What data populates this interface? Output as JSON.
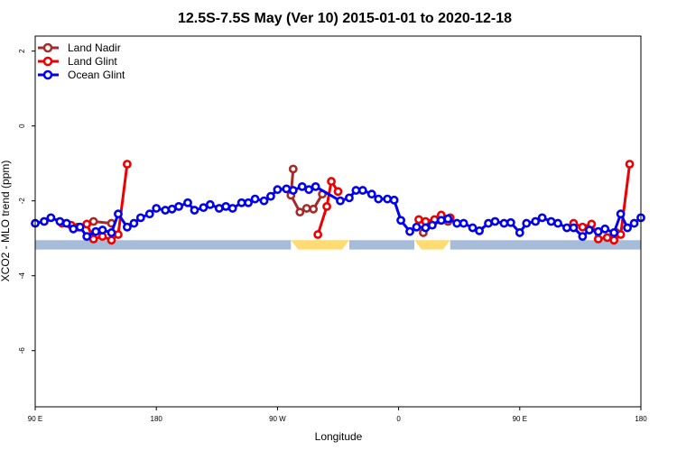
{
  "chart_data": {
    "type": "line",
    "title": "12.5S-7.5S May (Ver 10)   2015-01-01 to 2020-12-18",
    "xlabel": "Longitude",
    "ylabel": "XCO2 - MLO trend (ppm)",
    "xlim": [
      -90,
      180
    ],
    "ylim": [
      -7.5,
      2.4
    ],
    "x_ticks": [
      {
        "value": -90,
        "label": "90 E"
      },
      {
        "value": -36,
        "label": "180"
      },
      {
        "value": 18,
        "label": "90 W"
      },
      {
        "value": 72,
        "label": "0"
      },
      {
        "value": 126,
        "label": "90 E"
      },
      {
        "value": 180,
        "label": "180"
      }
    ],
    "y_ticks": [
      {
        "value": 2,
        "label": "2"
      },
      {
        "value": 0,
        "label": "0"
      },
      {
        "value": -2,
        "label": "-2"
      },
      {
        "value": -4,
        "label": "-4"
      },
      {
        "value": -6,
        "label": "-6"
      }
    ],
    "legend_position": "top-left",
    "surface_band": {
      "y_range": [
        -3.3,
        -3.05
      ],
      "segments": [
        {
          "x_range": [
            -90,
            24
          ],
          "surface": "ocean",
          "color": "#a7bcd8"
        },
        {
          "x_range": [
            24,
            50
          ],
          "surface": "land",
          "color": "#ffdb73"
        },
        {
          "x_range": [
            50,
            79
          ],
          "surface": "ocean",
          "color": "#a7bcd8"
        },
        {
          "x_range": [
            79,
            95
          ],
          "surface": "land",
          "color": "#ffdb73"
        },
        {
          "x_range": [
            95,
            180
          ],
          "surface": "ocean",
          "color": "#a7bcd8"
        }
      ]
    },
    "series": [
      {
        "name": "Land Nadir",
        "color": "#a52a2a",
        "points": [
          {
            "x": -64,
            "y": -2.55
          },
          {
            "x": -56,
            "y": -2.6
          },
          {
            "x": 25,
            "y": -1.15
          },
          {
            "x": 24,
            "y": -1.85
          },
          {
            "x": 28,
            "y": -2.3
          },
          {
            "x": 31,
            "y": -2.2
          },
          {
            "x": 34,
            "y": -2.22
          },
          {
            "x": 38,
            "y": -1.82
          },
          {
            "x": 83,
            "y": -2.85
          },
          {
            "x": 87,
            "y": -2.6
          },
          {
            "x": 94,
            "y": -2.55
          },
          {
            "x": 169,
            "y": -2.85
          }
        ]
      },
      {
        "name": "Land Glint",
        "color": "#ee0000",
        "points": [
          {
            "x": -78,
            "y": -2.6
          },
          {
            "x": -74,
            "y": -2.65
          },
          {
            "x": -71,
            "y": -2.7
          },
          {
            "x": -67,
            "y": -2.62
          },
          {
            "x": -64,
            "y": -3.02
          },
          {
            "x": -60,
            "y": -2.95
          },
          {
            "x": -56,
            "y": -3.05
          },
          {
            "x": -53,
            "y": -2.9
          },
          {
            "x": -49,
            "y": -1.02
          },
          {
            "x": 36,
            "y": -2.9
          },
          {
            "x": 40,
            "y": -2.15
          },
          {
            "x": 42,
            "y": -1.48
          },
          {
            "x": 45,
            "y": -1.75
          },
          {
            "x": 81,
            "y": -2.5
          },
          {
            "x": 84,
            "y": -2.55
          },
          {
            "x": 88,
            "y": -2.5
          },
          {
            "x": 91,
            "y": -2.38
          },
          {
            "x": 95,
            "y": -2.45
          },
          {
            "x": 150,
            "y": -2.6
          },
          {
            "x": 154,
            "y": -2.7
          },
          {
            "x": 158,
            "y": -2.62
          },
          {
            "x": 161,
            "y": -3.02
          },
          {
            "x": 165,
            "y": -2.98
          },
          {
            "x": 168,
            "y": -3.05
          },
          {
            "x": 171,
            "y": -2.9
          },
          {
            "x": 175,
            "y": -1.02
          }
        ]
      },
      {
        "name": "Ocean Glint",
        "color": "#0000ee",
        "points": [
          {
            "x": -90,
            "y": -2.6
          },
          {
            "x": -86,
            "y": -2.55
          },
          {
            "x": -83,
            "y": -2.45
          },
          {
            "x": -79,
            "y": -2.55
          },
          {
            "x": -76,
            "y": -2.6
          },
          {
            "x": -73,
            "y": -2.75
          },
          {
            "x": -70,
            "y": -2.7
          },
          {
            "x": -67,
            "y": -2.95
          },
          {
            "x": -63,
            "y": -2.82
          },
          {
            "x": -60,
            "y": -2.78
          },
          {
            "x": -56,
            "y": -2.85
          },
          {
            "x": -53,
            "y": -2.35
          },
          {
            "x": -49,
            "y": -2.7
          },
          {
            "x": -46,
            "y": -2.6
          },
          {
            "x": -43,
            "y": -2.45
          },
          {
            "x": -39,
            "y": -2.35
          },
          {
            "x": -36,
            "y": -2.2
          },
          {
            "x": -32,
            "y": -2.25
          },
          {
            "x": -29,
            "y": -2.22
          },
          {
            "x": -26,
            "y": -2.15
          },
          {
            "x": -22,
            "y": -2.05
          },
          {
            "x": -19,
            "y": -2.25
          },
          {
            "x": -15,
            "y": -2.18
          },
          {
            "x": -12,
            "y": -2.1
          },
          {
            "x": -8,
            "y": -2.2
          },
          {
            "x": -5,
            "y": -2.15
          },
          {
            "x": -2,
            "y": -2.2
          },
          {
            "x": 2,
            "y": -2.05
          },
          {
            "x": 5,
            "y": -2.05
          },
          {
            "x": 8,
            "y": -1.95
          },
          {
            "x": 12,
            "y": -2.0
          },
          {
            "x": 15,
            "y": -1.88
          },
          {
            "x": 18,
            "y": -1.7
          },
          {
            "x": 22,
            "y": -1.68
          },
          {
            "x": 25,
            "y": -1.72
          },
          {
            "x": 29,
            "y": -1.62
          },
          {
            "x": 32,
            "y": -1.7
          },
          {
            "x": 35,
            "y": -1.62
          },
          {
            "x": 46,
            "y": -2.0
          },
          {
            "x": 50,
            "y": -1.92
          },
          {
            "x": 53,
            "y": -1.72
          },
          {
            "x": 56,
            "y": -1.72
          },
          {
            "x": 60,
            "y": -1.82
          },
          {
            "x": 63,
            "y": -1.95
          },
          {
            "x": 67,
            "y": -1.95
          },
          {
            "x": 70,
            "y": -1.98
          },
          {
            "x": 73,
            "y": -2.52
          },
          {
            "x": 77,
            "y": -2.82
          },
          {
            "x": 80,
            "y": -2.7
          },
          {
            "x": 84,
            "y": -2.72
          },
          {
            "x": 87,
            "y": -2.65
          },
          {
            "x": 91,
            "y": -2.52
          },
          {
            "x": 94,
            "y": -2.48
          },
          {
            "x": 98,
            "y": -2.6
          },
          {
            "x": 101,
            "y": -2.6
          },
          {
            "x": 105,
            "y": -2.72
          },
          {
            "x": 108,
            "y": -2.8
          },
          {
            "x": 112,
            "y": -2.6
          },
          {
            "x": 115,
            "y": -2.55
          },
          {
            "x": 119,
            "y": -2.6
          },
          {
            "x": 122,
            "y": -2.58
          },
          {
            "x": 126,
            "y": -2.85
          },
          {
            "x": 129,
            "y": -2.6
          },
          {
            "x": 133,
            "y": -2.55
          },
          {
            "x": 136,
            "y": -2.45
          },
          {
            "x": 140,
            "y": -2.55
          },
          {
            "x": 143,
            "y": -2.6
          },
          {
            "x": 147,
            "y": -2.72
          },
          {
            "x": 150,
            "y": -2.72
          },
          {
            "x": 154,
            "y": -2.95
          },
          {
            "x": 157,
            "y": -2.78
          },
          {
            "x": 161,
            "y": -2.82
          },
          {
            "x": 164,
            "y": -2.75
          },
          {
            "x": 168,
            "y": -2.85
          },
          {
            "x": 171,
            "y": -2.35
          },
          {
            "x": 174,
            "y": -2.72
          },
          {
            "x": 177,
            "y": -2.6
          },
          {
            "x": 180,
            "y": -2.45
          }
        ]
      }
    ]
  }
}
